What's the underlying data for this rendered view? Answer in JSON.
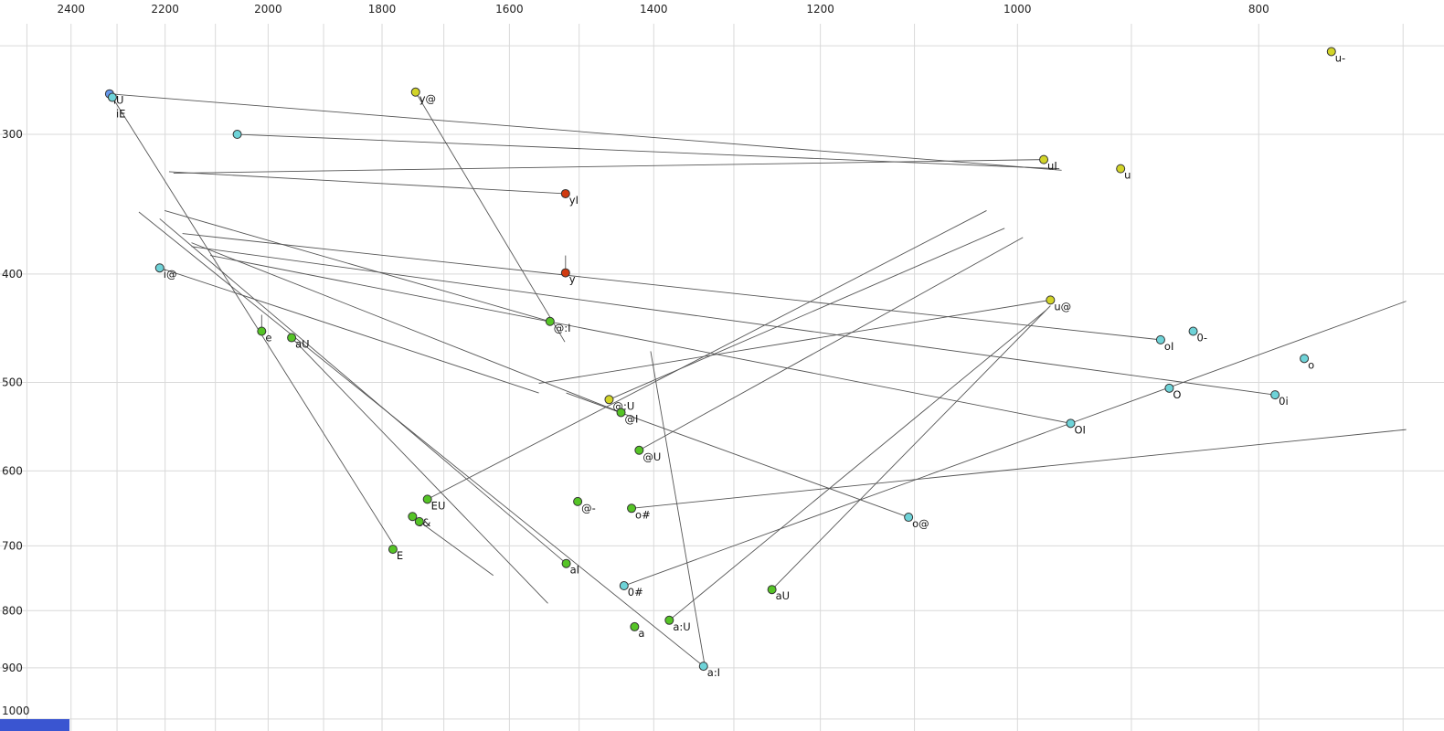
{
  "chart_data": {
    "type": "scatter",
    "title": "",
    "description": "Vowel formant plot: F2 on horizontal log axis (reversed), F1 on vertical log axis (increasing downward); labeled vowel tokens with diphthong trajectory lines",
    "x_axis": {
      "scale": "log",
      "reversed": true,
      "left_value": 2563,
      "right_value": 674,
      "tick_labels": [
        2400,
        2200,
        2000,
        1800,
        1600,
        1400,
        1200,
        1000,
        800
      ],
      "grid_values": [
        2500,
        2400,
        2300,
        2200,
        2100,
        2000,
        1900,
        1800,
        1700,
        1600,
        1500,
        1400,
        1300,
        1200,
        1100,
        1000,
        900,
        800,
        700
      ]
    },
    "y_axis": {
      "scale": "log",
      "top_value": 227.5,
      "bottom_value": 1025,
      "tick_labels": [
        300,
        400,
        500,
        600,
        700,
        800,
        900,
        1000
      ],
      "grid_values": [
        250,
        300,
        400,
        500,
        600,
        700,
        800,
        900,
        1000
      ]
    },
    "grid": true,
    "legend": false,
    "colors": {
      "green": "#55c426",
      "yellow": "#d2d428",
      "cyan": "#6ed3d8",
      "blue": "#6699ee",
      "red": "#d03a10",
      "line": "#555555",
      "grid": "#d9d9d9",
      "tick_text": "#222222",
      "label_text": "#111111"
    },
    "points": [
      {
        "label": "u-",
        "f2": 748,
        "f1": 253,
        "color": "yellow"
      },
      {
        "label": "iU",
        "f2": 2316,
        "f1": 276,
        "color": "blue"
      },
      {
        "label": "iE",
        "f2": 2310,
        "f1": 278,
        "color": "cyan",
        "ldy": 22
      },
      {
        "label": "y@",
        "f2": 1745,
        "f1": 275,
        "color": "yellow"
      },
      {
        "label": "",
        "f2": 2058,
        "f1": 300,
        "color": "cyan"
      },
      {
        "label": "uI",
        "f2": 976,
        "f1": 316,
        "color": "yellow"
      },
      {
        "label": "u",
        "f2": 909,
        "f1": 322,
        "color": "yellow"
      },
      {
        "label": "yI",
        "f2": 1519,
        "f1": 339,
        "color": "red"
      },
      {
        "label": "i@",
        "f2": 2211,
        "f1": 395,
        "color": "cyan"
      },
      {
        "label": "y",
        "f2": 1519,
        "f1": 399,
        "color": "red"
      },
      {
        "label": "u@",
        "f2": 970,
        "f1": 422,
        "color": "yellow"
      },
      {
        "label": "@:I",
        "f2": 1541,
        "f1": 441,
        "color": "green"
      },
      {
        "label": "e",
        "f2": 2012,
        "f1": 450,
        "color": "green"
      },
      {
        "label": "0-",
        "f2": 850,
        "f1": 450,
        "color": "cyan"
      },
      {
        "label": "aU",
        "f2": 1957,
        "f1": 456,
        "color": "green"
      },
      {
        "label": "oI",
        "f2": 876,
        "f1": 458,
        "color": "cyan"
      },
      {
        "label": "o",
        "f2": 767,
        "f1": 476,
        "color": "cyan"
      },
      {
        "label": "O",
        "f2": 869,
        "f1": 506,
        "color": "cyan"
      },
      {
        "label": "0i",
        "f2": 788,
        "f1": 513,
        "color": "cyan"
      },
      {
        "label": "@:U",
        "f2": 1459,
        "f1": 518,
        "color": "yellow"
      },
      {
        "label": "@I",
        "f2": 1443,
        "f1": 532,
        "color": "green"
      },
      {
        "label": "OI",
        "f2": 952,
        "f1": 544,
        "color": "cyan"
      },
      {
        "label": "@U",
        "f2": 1419,
        "f1": 575,
        "color": "green"
      },
      {
        "label": "EU",
        "f2": 1726,
        "f1": 636,
        "color": "green"
      },
      {
        "label": "@-",
        "f2": 1502,
        "f1": 639,
        "color": "green"
      },
      {
        "label": "o#",
        "f2": 1429,
        "f1": 648,
        "color": "green"
      },
      {
        "label": "e&",
        "f2": 1750,
        "f1": 659,
        "color": "green"
      },
      {
        "label": "",
        "f2": 1739,
        "f1": 666,
        "color": "green"
      },
      {
        "label": "o@",
        "f2": 1106,
        "f1": 660,
        "color": "cyan"
      },
      {
        "label": "E",
        "f2": 1782,
        "f1": 705,
        "color": "green"
      },
      {
        "label": "aI",
        "f2": 1518,
        "f1": 726,
        "color": "green"
      },
      {
        "label": "0#",
        "f2": 1439,
        "f1": 760,
        "color": "cyan"
      },
      {
        "label": "aU",
        "f2": 1255,
        "f1": 766,
        "color": "green"
      },
      {
        "label": "a:U",
        "f2": 1380,
        "f1": 816,
        "color": "green"
      },
      {
        "label": "a",
        "f2": 1425,
        "f1": 827,
        "color": "green"
      },
      {
        "label": "a:I",
        "f2": 1337,
        "f1": 897,
        "color": "cyan"
      }
    ],
    "segments": [
      {
        "from": [
          2316,
          276
        ],
        "to": [
          960,
          323
        ]
      },
      {
        "from": [
          2058,
          300
        ],
        "to": [
          962,
          322
        ]
      },
      {
        "from": [
          1745,
          275
        ],
        "to": [
          1520,
          460
        ]
      },
      {
        "from": [
          1519,
          339
        ],
        "to": [
          2192,
          324
        ]
      },
      {
        "from": [
          976,
          316
        ],
        "to": [
          2183,
          325
        ]
      },
      {
        "from": [
          1519,
          399
        ],
        "to": [
          1519,
          385
        ]
      },
      {
        "from": [
          2012,
          450
        ],
        "to": [
          2012,
          435
        ]
      },
      {
        "from": [
          2211,
          395
        ],
        "to": [
          1557,
          511
        ]
      },
      {
        "from": [
          1541,
          441
        ],
        "to": [
          2201,
          351
        ]
      },
      {
        "from": [
          970,
          422
        ],
        "to": [
          1557,
          501
        ]
      },
      {
        "from": [
          876,
          458
        ],
        "to": [
          2165,
          368
        ]
      },
      {
        "from": [
          1459,
          518
        ],
        "to": [
          1012,
          364
        ]
      },
      {
        "from": [
          1443,
          532
        ],
        "to": [
          2147,
          375
        ]
      },
      {
        "from": [
          1419,
          575
        ],
        "to": [
          995,
          371
        ]
      },
      {
        "from": [
          788,
          513
        ],
        "to": [
          2147,
          378
        ]
      },
      {
        "from": [
          952,
          544
        ],
        "to": [
          2110,
          385
        ]
      },
      {
        "from": [
          1726,
          636
        ],
        "to": [
          1029,
          351
        ]
      },
      {
        "from": [
          1750,
          659
        ],
        "to": [
          1624,
          744
        ]
      },
      {
        "from": [
          1106,
          660
        ],
        "to": [
          1518,
          511
        ]
      },
      {
        "from": [
          1518,
          726
        ],
        "to": [
          2211,
          357
        ]
      },
      {
        "from": [
          1255,
          766
        ],
        "to": [
          970,
          427
        ]
      },
      {
        "from": [
          1380,
          816
        ],
        "to": [
          974,
          431
        ]
      },
      {
        "from": [
          1337,
          897
        ],
        "to": [
          2254,
          352
        ]
      },
      {
        "from": [
          1439,
          760
        ],
        "to": [
          698,
          423
        ]
      },
      {
        "from": [
          1429,
          648
        ],
        "to": [
          698,
          551
        ]
      },
      {
        "from": [
          1404,
          469
        ],
        "to": [
          1335,
          900
        ]
      },
      {
        "from": [
          2310,
          278
        ],
        "to": [
          1782,
          697
        ]
      },
      {
        "from": [
          1957,
          456
        ],
        "to": [
          1544,
          788
        ]
      }
    ]
  },
  "misc": {
    "bottom_left_bar_color": "#3a55d1"
  }
}
